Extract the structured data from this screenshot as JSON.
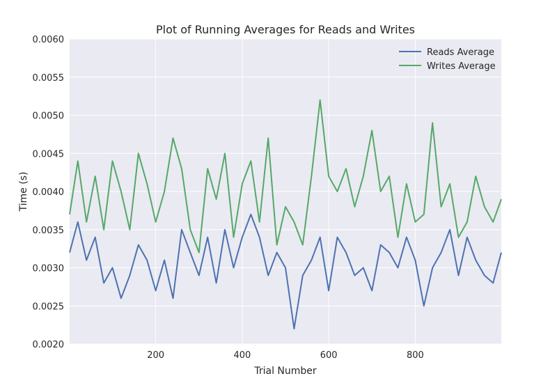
{
  "chart_data": {
    "type": "line",
    "title": "Plot of Running Averages for Reads and Writes",
    "xlabel": "Trial Number",
    "ylabel": "Time (s)",
    "xlim": [
      1,
      999
    ],
    "ylim": [
      0.002,
      0.006
    ],
    "xticks": [
      200,
      400,
      600,
      800
    ],
    "xtick_labels": [
      "200",
      "400",
      "600",
      "800"
    ],
    "yticks": [
      0.002,
      0.0025,
      0.003,
      0.0035,
      0.004,
      0.0045,
      0.005,
      0.0055,
      0.006
    ],
    "ytick_labels": [
      "0.0020",
      "0.0025",
      "0.0030",
      "0.0035",
      "0.0040",
      "0.0045",
      "0.0050",
      "0.0055",
      "0.0060"
    ],
    "grid": true,
    "legend_position": "top-right",
    "background_color": "#EAEAF2",
    "x": [
      1,
      20,
      40,
      60,
      80,
      100,
      120,
      140,
      160,
      180,
      200,
      220,
      240,
      260,
      280,
      300,
      320,
      340,
      360,
      380,
      400,
      420,
      440,
      460,
      480,
      500,
      520,
      540,
      560,
      580,
      600,
      620,
      640,
      660,
      680,
      700,
      720,
      740,
      760,
      780,
      800,
      820,
      840,
      860,
      880,
      900,
      920,
      940,
      960,
      980,
      999
    ],
    "series": [
      {
        "name": "Reads Average",
        "color": "#4C72B0",
        "values": [
          0.0032,
          0.0036,
          0.0031,
          0.0034,
          0.0028,
          0.003,
          0.0026,
          0.0029,
          0.0033,
          0.0031,
          0.0027,
          0.0031,
          0.0026,
          0.0035,
          0.0032,
          0.0029,
          0.0034,
          0.0028,
          0.0035,
          0.003,
          0.0034,
          0.0037,
          0.0034,
          0.0029,
          0.0032,
          0.003,
          0.0022,
          0.0029,
          0.0031,
          0.0034,
          0.0027,
          0.0034,
          0.0032,
          0.0029,
          0.003,
          0.0027,
          0.0033,
          0.0032,
          0.003,
          0.0034,
          0.0031,
          0.0025,
          0.003,
          0.0032,
          0.0035,
          0.0029,
          0.0034,
          0.0031,
          0.0029,
          0.0028,
          0.0032
        ]
      },
      {
        "name": "Writes Average",
        "color": "#55A868",
        "values": [
          0.0037,
          0.0044,
          0.0036,
          0.0042,
          0.0035,
          0.0044,
          0.004,
          0.0035,
          0.0045,
          0.0041,
          0.0036,
          0.004,
          0.0047,
          0.0043,
          0.0035,
          0.0032,
          0.0043,
          0.0039,
          0.0045,
          0.0034,
          0.0041,
          0.0044,
          0.0036,
          0.0047,
          0.0033,
          0.0038,
          0.0036,
          0.0033,
          0.0042,
          0.0052,
          0.0042,
          0.004,
          0.0043,
          0.0038,
          0.0042,
          0.0048,
          0.004,
          0.0042,
          0.0034,
          0.0041,
          0.0036,
          0.0037,
          0.0049,
          0.0038,
          0.0041,
          0.0034,
          0.0036,
          0.0042,
          0.0038,
          0.0036,
          0.0039
        ]
      }
    ]
  }
}
